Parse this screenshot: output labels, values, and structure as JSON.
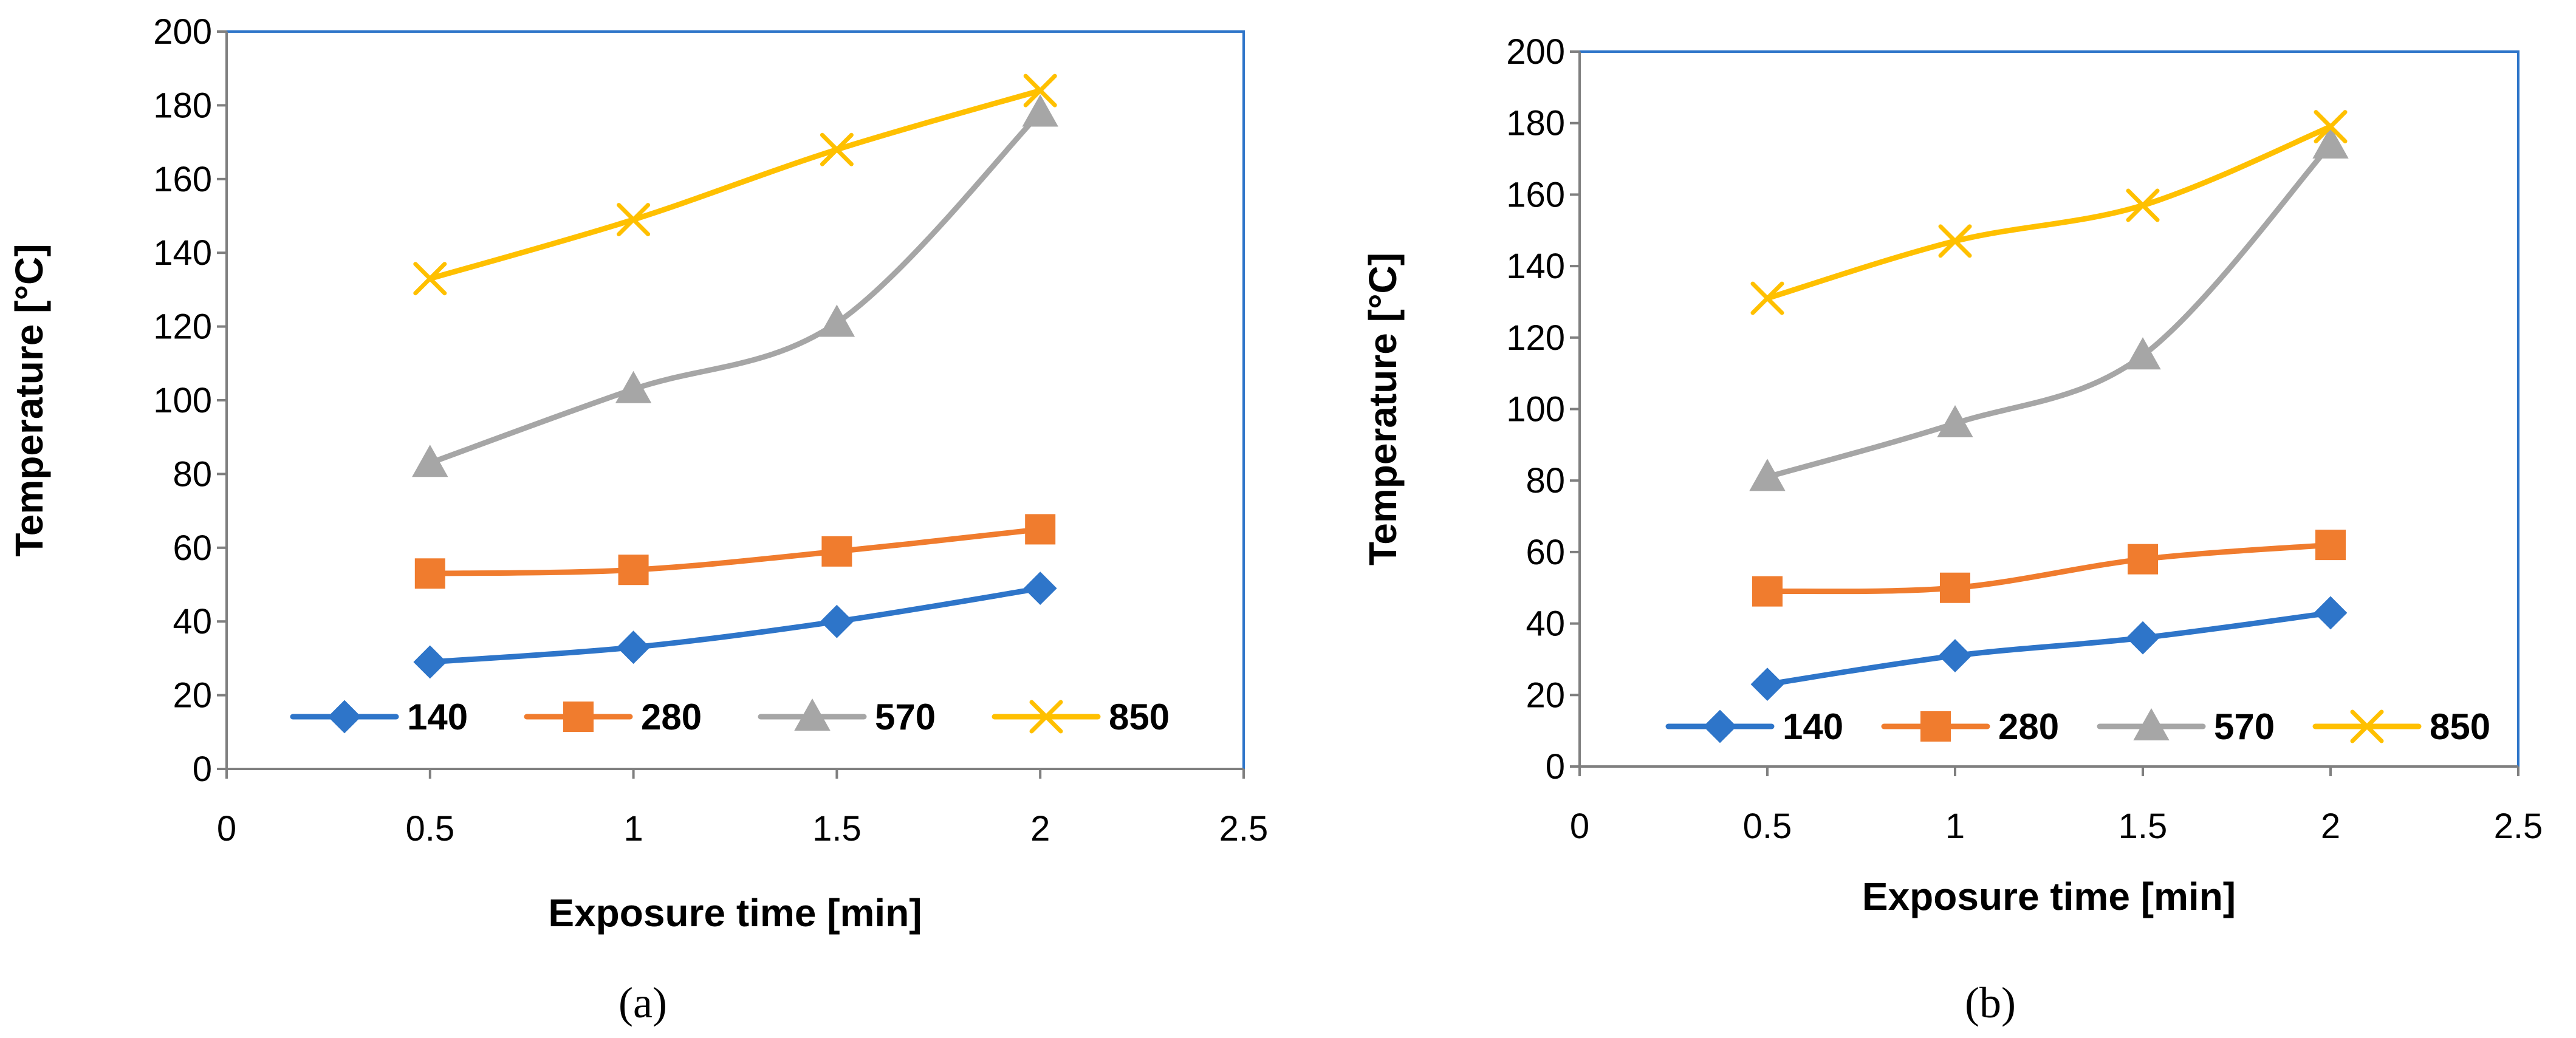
{
  "chart_data": [
    {
      "type": "line",
      "caption": "(a)",
      "xlabel": "Exposure time [min]",
      "ylabel": "Temperature [°C]",
      "xlim": [
        0,
        2.5
      ],
      "ylim": [
        0,
        200
      ],
      "xticks": [
        0,
        0.5,
        1,
        1.5,
        2,
        2.5
      ],
      "xtick_labels": [
        "0",
        "0.5",
        "1",
        "1.5",
        "2",
        "2.5"
      ],
      "yticks": [
        0,
        20,
        40,
        60,
        80,
        100,
        120,
        140,
        160,
        180,
        200
      ],
      "ytick_labels": [
        "0",
        "20",
        "40",
        "60",
        "80",
        "100",
        "120",
        "140",
        "160",
        "180",
        "200"
      ],
      "legend_position": "bottom",
      "x": [
        0.5,
        1,
        1.5,
        2
      ],
      "series": [
        {
          "name": "140",
          "color": "#2e75c9",
          "marker": "diamond",
          "values": [
            29,
            33,
            40,
            49
          ]
        },
        {
          "name": "280",
          "color": "#f07c2e",
          "marker": "square",
          "values": [
            53,
            54,
            59,
            65
          ]
        },
        {
          "name": "570",
          "color": "#a6a6a6",
          "marker": "triangle",
          "values": [
            83,
            103,
            121,
            178
          ]
        },
        {
          "name": "850",
          "color": "#ffc000",
          "marker": "x",
          "values": [
            133,
            149,
            168,
            184
          ]
        }
      ]
    },
    {
      "type": "line",
      "caption": "(b)",
      "xlabel": "Exposure time [min]",
      "ylabel": "Temperature [°C]",
      "xlim": [
        0,
        2.5
      ],
      "ylim": [
        0,
        200
      ],
      "xticks": [
        0,
        0.5,
        1,
        1.5,
        2,
        2.5
      ],
      "xtick_labels": [
        "0",
        "0.5",
        "1",
        "1.5",
        "2",
        "2.5"
      ],
      "yticks": [
        0,
        20,
        40,
        60,
        80,
        100,
        120,
        140,
        160,
        180,
        200
      ],
      "ytick_labels": [
        "0",
        "20",
        "40",
        "60",
        "80",
        "100",
        "120",
        "140",
        "160",
        "180",
        "200"
      ],
      "legend_position": "bottom",
      "x": [
        0.5,
        1,
        1.5,
        2
      ],
      "series": [
        {
          "name": "140",
          "color": "#2e75c9",
          "marker": "diamond",
          "values": [
            23,
            31,
            36,
            43
          ]
        },
        {
          "name": "280",
          "color": "#f07c2e",
          "marker": "square",
          "values": [
            49,
            50,
            58,
            62
          ]
        },
        {
          "name": "570",
          "color": "#a6a6a6",
          "marker": "triangle",
          "values": [
            81,
            96,
            115,
            174
          ]
        },
        {
          "name": "850",
          "color": "#ffc000",
          "marker": "x",
          "values": [
            131,
            147,
            157,
            179
          ]
        }
      ]
    }
  ]
}
